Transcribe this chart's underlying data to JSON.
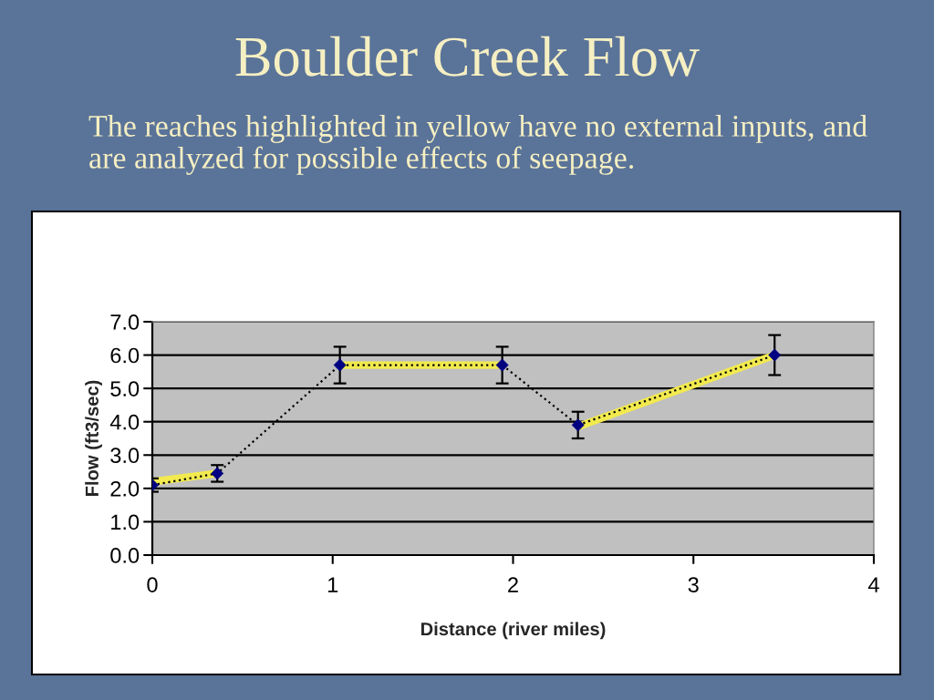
{
  "chart_data": {
    "type": "line",
    "title": "Boulder Creek Flow",
    "subtitle": "The reaches highlighted in yellow have no external inputs, and\nare analyzed for possible effects of seepage.",
    "xlabel": "Distance (river miles)",
    "ylabel": "Flow (ft3/sec)",
    "xlim": [
      0,
      4
    ],
    "xticks": [
      0,
      1,
      2,
      3,
      4
    ],
    "ylim": [
      0,
      7
    ],
    "yticks": [
      {
        "value": 0,
        "label": "0.0"
      },
      {
        "value": 1,
        "label": "1.0"
      },
      {
        "value": 2,
        "label": "2.0"
      },
      {
        "value": 3,
        "label": "3.0"
      },
      {
        "value": 4,
        "label": "4.0"
      },
      {
        "value": 5,
        "label": "5.0"
      },
      {
        "value": 6,
        "label": "6.0"
      },
      {
        "value": 7,
        "label": "7.0"
      }
    ],
    "grid": "y",
    "series": [
      {
        "color": "#f2ea4e",
        "line_style": "solid",
        "marker": "none",
        "x": [
          0,
          0.36
        ],
        "values": [
          2.2,
          2.45
        ]
      },
      {
        "color": "#f2ea4e",
        "line_style": "solid",
        "marker": "none",
        "x": [
          1.04,
          1.94
        ],
        "values": [
          5.7,
          5.7
        ]
      },
      {
        "color": "#f2ea4e",
        "line_style": "solid",
        "marker": "none",
        "x": [
          2.36,
          3.45
        ],
        "values": [
          3.85,
          6.0
        ]
      },
      {
        "color": "#000000",
        "line_style": "dotted",
        "marker": "none",
        "x": [
          0,
          0.36,
          1.04,
          1.94,
          2.36,
          3.45
        ],
        "values": [
          2.1,
          2.45,
          5.7,
          5.7,
          3.9,
          6.0
        ]
      },
      {
        "type": "scatter",
        "color": "#000080",
        "marker": "diamond",
        "x": [
          0,
          0.36,
          1.04,
          1.94,
          2.36,
          3.45
        ],
        "values": [
          2.1,
          2.45,
          5.7,
          5.7,
          3.9,
          6.0
        ],
        "errors": [
          0.2,
          0.25,
          0.55,
          0.55,
          0.4,
          0.6
        ]
      }
    ]
  }
}
